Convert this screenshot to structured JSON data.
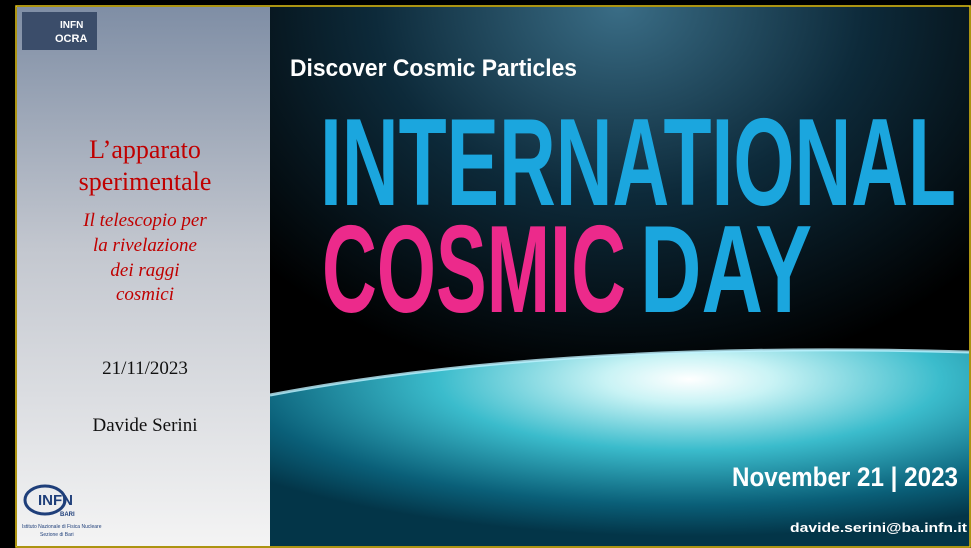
{
  "header_logo": {
    "line1": "INFN",
    "line2": "OCRA"
  },
  "sidebar": {
    "title_lines": [
      "L’apparato",
      "sperimentale"
    ],
    "subtitle_lines": [
      "Il telescopio per",
      "la rivelazione",
      "dei raggi",
      "cosmici"
    ],
    "date": "21/11/2023",
    "author": "Davide Serini"
  },
  "footer_logo": {
    "name": "INFN",
    "branch": "BARI",
    "institute": "Istituto Nazionale di Fisica Nucleare",
    "section": "Sezione di Bari"
  },
  "banner": {
    "tagline": "Discover Cosmic Particles",
    "title_line1": "INTERNATIONAL",
    "title_word1": "COSMIC",
    "title_word2": "DAY",
    "date": "November 21 | 2023",
    "email": "davide.serini@ba.infn.it"
  }
}
